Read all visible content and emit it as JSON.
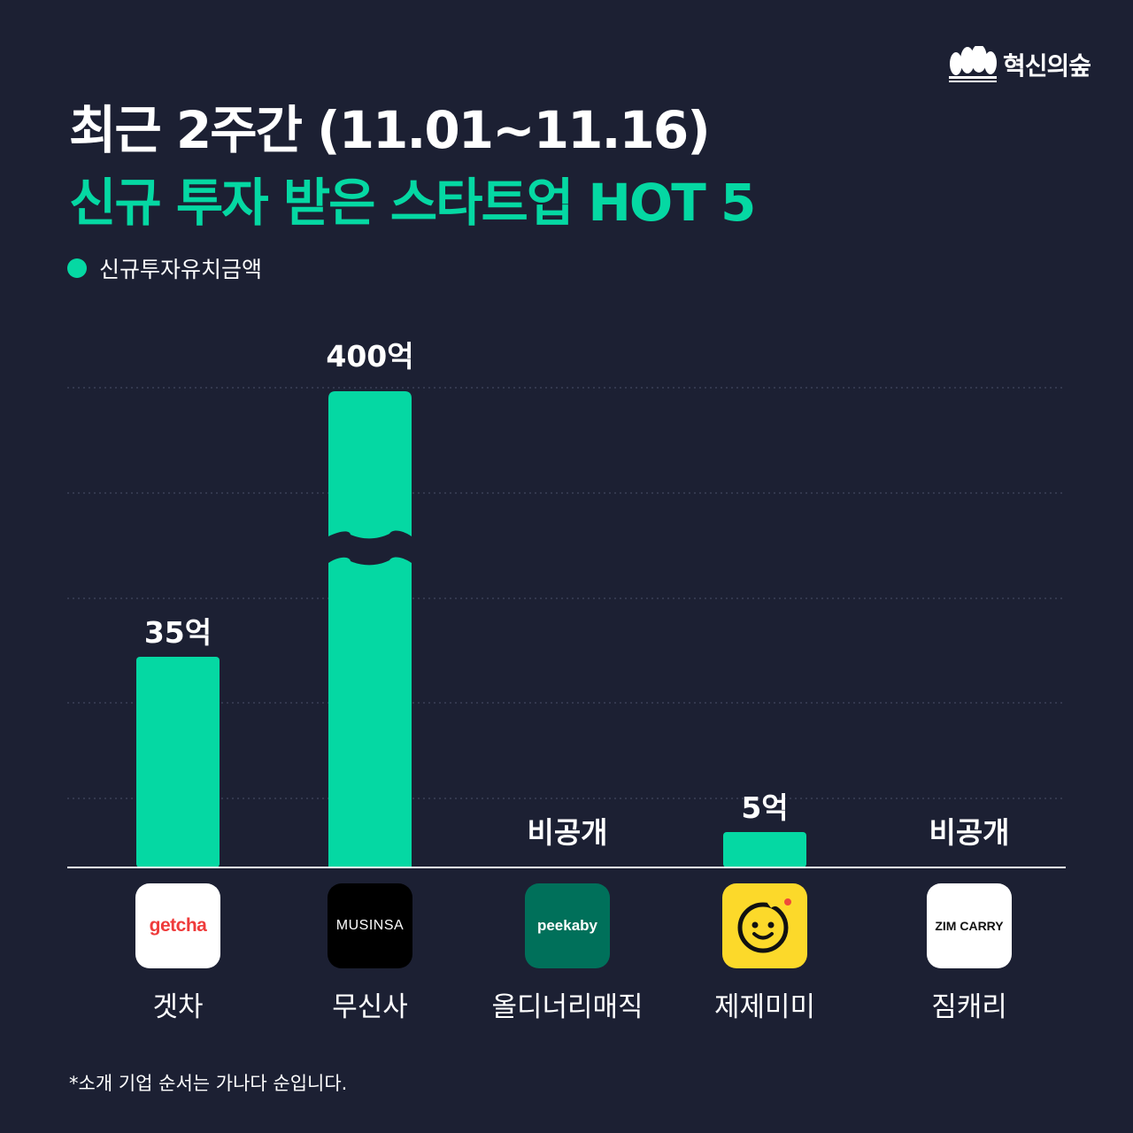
{
  "title_line1": "최근 2주간 (11.01~11.16)",
  "title_line2": "신규 투자 받은 스타트업 HOT 5",
  "brand": {
    "name": "혁신의숲",
    "logo_icon": "forest-icon"
  },
  "colors": {
    "background": "#1c2033",
    "accent": "#05d8a3",
    "text": "#ffffff"
  },
  "footnote": "*소개 기업 순서는 가나다 순입니다.",
  "chart_data": {
    "type": "bar",
    "legend": [
      "신규투자유치금액"
    ],
    "legend_position": "top-left",
    "grid": true,
    "broken_axis": true,
    "categories": [
      "겟차",
      "무신사",
      "올디너리매직",
      "제제미미",
      "짐캐리"
    ],
    "values": [
      35,
      400,
      null,
      5,
      null
    ],
    "value_labels": [
      "35억",
      "400억",
      "비공개",
      "5억",
      "비공개"
    ],
    "unit": "억",
    "logos": [
      {
        "text": "getcha",
        "bg": "#ffffff",
        "fg": "#ef3b3b"
      },
      {
        "text": "MUSINSA",
        "bg": "#000000",
        "fg": "#ffffff"
      },
      {
        "text": "peekaby",
        "bg": "#00705a",
        "fg": "#ffffff"
      },
      {
        "text": "",
        "icon": "smiley-face-icon",
        "bg": "#fcd92a",
        "fg": "#111111"
      },
      {
        "text": "ZIM CARRY",
        "bg": "#ffffff",
        "fg": "#111111"
      }
    ]
  }
}
